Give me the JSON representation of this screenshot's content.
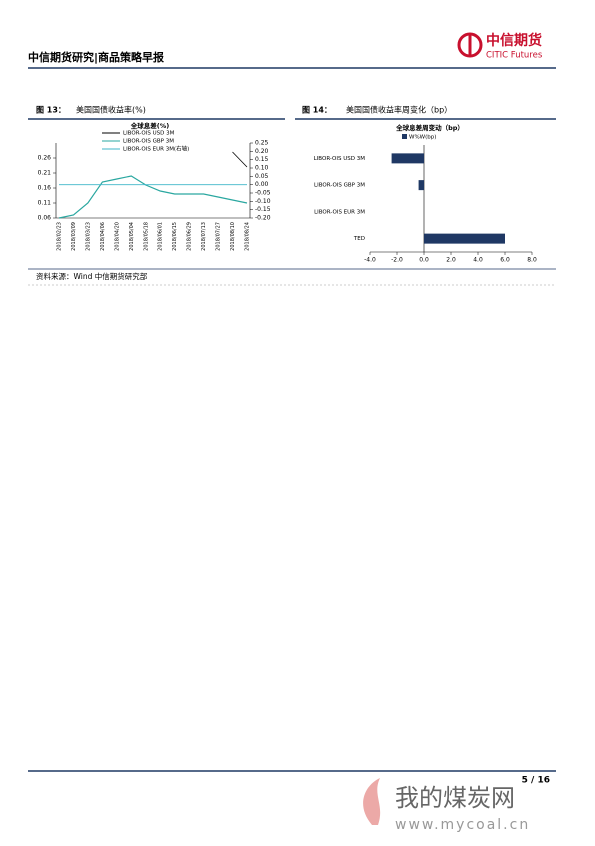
{
  "header": {
    "title": "中信期货研究|商品策略早报",
    "logo_cn": "中信期货",
    "logo_en": "CITIC Futures"
  },
  "figures": [
    {
      "label": "图 13：",
      "caption": "美国国债收益率(%)"
    },
    {
      "label": "图 14：",
      "caption": "美国国债收益率周变化（bp）"
    }
  ],
  "chart_data": [
    {
      "type": "line",
      "title": "全球息差(%)",
      "x": [
        "2018/02/23",
        "2018/03/09",
        "2018/03/23",
        "2018/04/06",
        "2018/04/20",
        "2018/05/04",
        "2018/05/18",
        "2018/06/01",
        "2018/06/15",
        "2018/06/29",
        "2018/07/13",
        "2018/07/27",
        "2018/08/10",
        "2018/08/24"
      ],
      "series": [
        {
          "name": "LIBOR-OIS USD 3M",
          "color": "#000000",
          "values": [
            null,
            null,
            null,
            null,
            null,
            null,
            null,
            null,
            null,
            null,
            null,
            null,
            0.28,
            0.23
          ]
        },
        {
          "name": "LIBOR-OIS GBP 3M",
          "color": "#2aa7a0",
          "values": [
            0.06,
            0.07,
            0.11,
            0.18,
            0.19,
            0.2,
            0.17,
            0.15,
            0.14,
            0.14,
            0.14,
            0.13,
            0.12,
            0.11
          ]
        },
        {
          "name": "LIBOR-OIS EUR 3M(右轴)",
          "color": "#3fb6c9",
          "axis": "y2",
          "values": [
            0.0,
            0.0,
            0.0,
            0.0,
            0.0,
            0.0,
            0.0,
            0.0,
            0.0,
            0.0,
            0.0,
            0.0,
            0.0,
            0.0
          ]
        }
      ],
      "ylim": [
        0.06,
        0.31
      ],
      "yticks": [
        0.06,
        0.11,
        0.16,
        0.21,
        0.26
      ],
      "y2lim": [
        -0.2,
        0.25
      ],
      "y2ticks": [
        {
          "value": -0.2,
          "label": "-0.20"
        },
        -0.15,
        {
          "value": -0.1,
          "label": "-0.10"
        },
        -0.05,
        {
          "value": 0,
          "label": "0.00"
        },
        0.05,
        {
          "value": 0.1,
          "label": "0.10"
        },
        0.15,
        {
          "value": 0.2,
          "label": "0.20"
        },
        0.25
      ]
    },
    {
      "type": "hbar",
      "title": "全球息差周变动（bp）",
      "categories": [
        "LIBOR-OIS USD 3M",
        "LIBOR-OIS GBP 3M",
        "LIBOR-OIS EUR 3M",
        "TED"
      ],
      "series": [
        {
          "name": "W%W(bp)",
          "color": "#1f3864",
          "values": [
            -2.4,
            -0.4,
            0,
            6.0
          ]
        }
      ],
      "xlim": [
        -4,
        8
      ],
      "xticks": [
        {
          "value": -4,
          "label": "-4.0"
        },
        {
          "value": -2,
          "label": "-2.0"
        },
        {
          "value": 0,
          "label": "0.0"
        },
        {
          "value": 2,
          "label": "2.0"
        },
        {
          "value": 4,
          "label": "4.0"
        },
        {
          "value": 6,
          "label": "6.0"
        },
        {
          "value": 8,
          "label": "8.0"
        }
      ]
    }
  ],
  "source": "资料来源：Wind 中信期货研究部",
  "page": "5 / 16",
  "watermark": {
    "name": "我的煤炭网",
    "url": "www.mycoal.cn"
  }
}
